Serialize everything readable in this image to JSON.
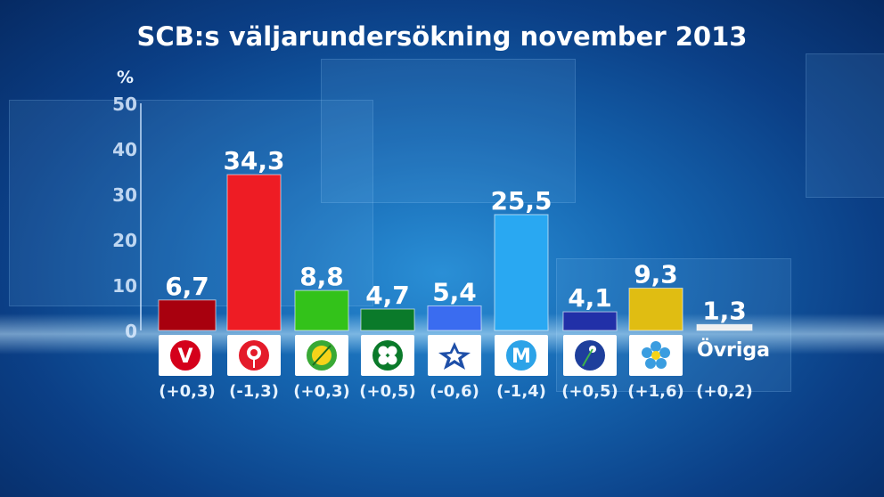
{
  "chart_data": {
    "type": "bar",
    "title": "SCB:s väljarundersökning november 2013",
    "ylabel": "%",
    "ylim": [
      0,
      50
    ],
    "yticks": [
      "0",
      "10",
      "20",
      "30",
      "40",
      "50"
    ],
    "values": [
      6.7,
      34.3,
      8.8,
      4.7,
      5.4,
      25.5,
      4.1,
      9.3,
      1.3
    ],
    "value_labels": [
      "6,7",
      "34,3",
      "8,8",
      "4,7",
      "5,4",
      "25,5",
      "4,1",
      "9,3",
      "1,3"
    ],
    "changes": [
      "(+0,3)",
      "(-1,3)",
      "(+0,3)",
      "(+0,5)",
      "(-0,6)",
      "(-1,4)",
      "(+0,5)",
      "(+1,6)",
      "(+0,2)"
    ],
    "colors": [
      "#a8000e",
      "#ee1c24",
      "#33c21a",
      "#0a7a2a",
      "#3a6cf0",
      "#29a8f2",
      "#2130a8",
      "#e0bd12",
      "#f0f0f0"
    ],
    "logos": [
      "v-logo-icon",
      "s-rose-logo-icon",
      "mp-sun-logo-icon",
      "c-clover-logo-icon",
      "fp-star-logo-icon",
      "m-logo-icon",
      "kd-flower-logo-icon",
      "sd-flower-logo-icon"
    ],
    "other_label": "Övriga"
  }
}
